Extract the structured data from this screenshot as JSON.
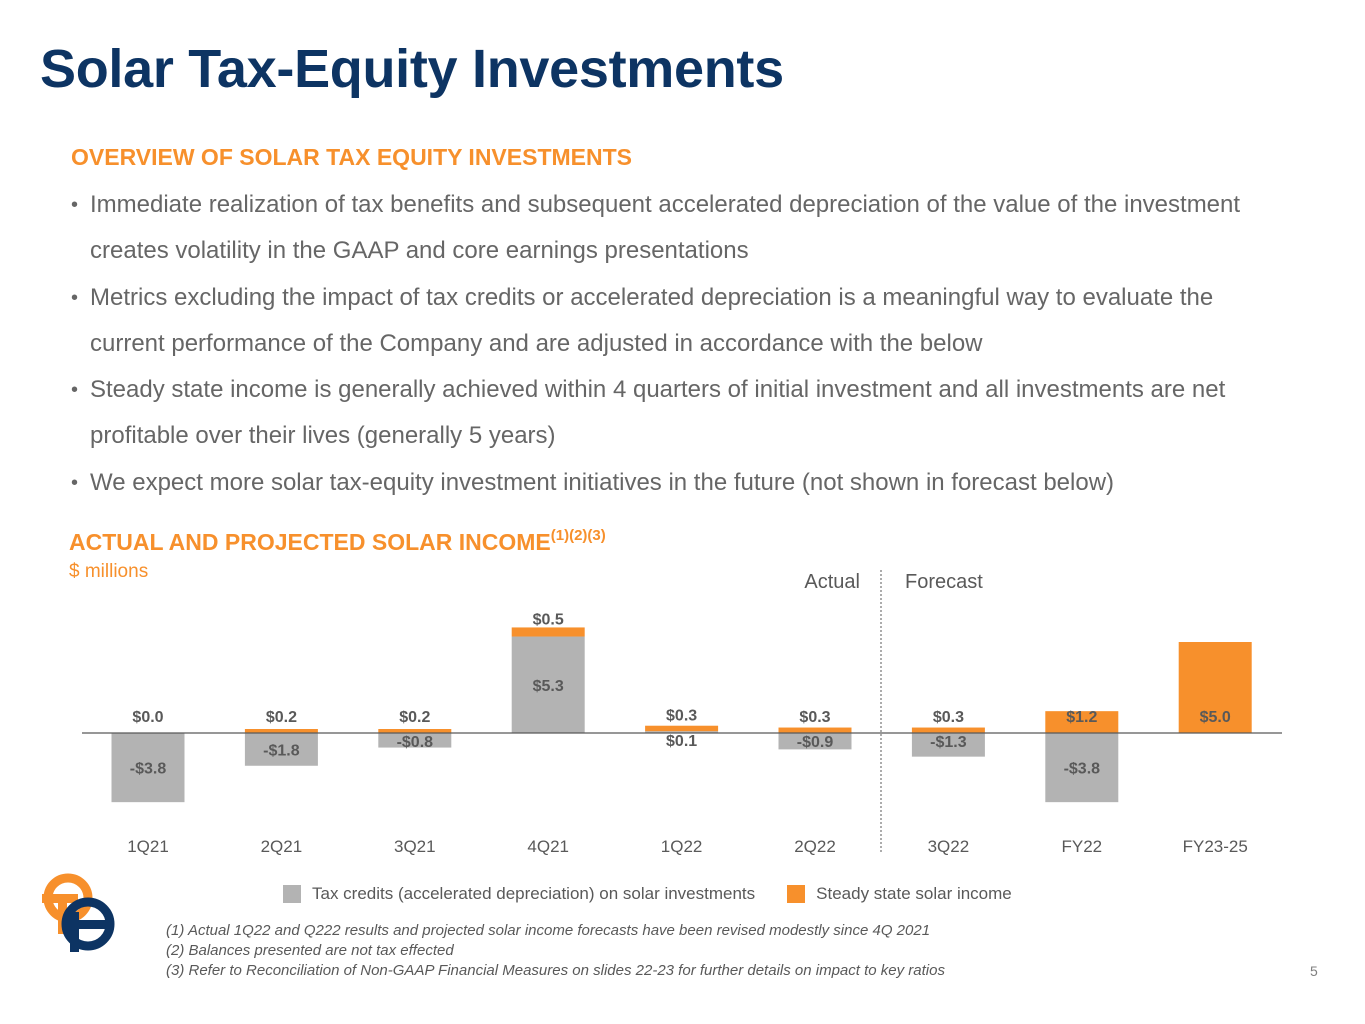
{
  "slide": {
    "title": "Solar Tax-Equity Investments",
    "page_number": "5"
  },
  "overview": {
    "heading": "OVERVIEW OF SOLAR TAX EQUITY INVESTMENTS",
    "bullets": [
      "Immediate realization of tax benefits and subsequent accelerated depreciation of the value of the investment creates volatility in the GAAP and core earnings presentations",
      "Metrics excluding the impact of tax credits or accelerated depreciation is a meaningful way to evaluate the current performance of the Company and are adjusted in accordance with the below",
      "Steady state income is generally achieved within 4 quarters of initial investment and all investments are net profitable over their lives (generally 5 years)",
      "We expect more solar tax-equity investment initiatives in the future (not shown in forecast below)"
    ]
  },
  "chart_heading": {
    "title": "ACTUAL AND PROJECTED SOLAR INCOME",
    "superscript": "(1)(2)(3)",
    "unit": "$ millions"
  },
  "chart_data": {
    "type": "bar",
    "stacked": true,
    "categories": [
      "1Q21",
      "2Q21",
      "3Q21",
      "4Q21",
      "1Q22",
      "2Q22",
      "3Q22",
      "FY22",
      "FY23-25"
    ],
    "series": [
      {
        "name": "Tax credits (accelerated depreciation) on solar investments",
        "color": "#b3b3b3",
        "values": [
          -3.8,
          -1.8,
          -0.8,
          5.3,
          0.1,
          -0.9,
          -1.3,
          -3.8,
          0
        ],
        "labels": [
          "-$3.8",
          "-$1.8",
          "-$0.8",
          "$5.3",
          "$0.1",
          "-$0.9",
          "-$1.3",
          "-$3.8",
          ""
        ]
      },
      {
        "name": "Steady state solar income",
        "color": "#f7902c",
        "values": [
          0.0,
          0.2,
          0.2,
          0.5,
          0.3,
          0.3,
          0.3,
          1.2,
          5.0
        ],
        "labels": [
          "$0.0",
          "$0.2",
          "$0.2",
          "$0.5",
          "$0.3",
          "$0.3",
          "$0.3",
          "$1.2",
          "$5.0"
        ]
      }
    ],
    "divider_labels": {
      "left": "Actual",
      "right": "Forecast"
    },
    "legend_position": "bottom",
    "grid": false
  },
  "footnotes": [
    "(1) Actual 1Q22 and Q222 results and projected solar income forecasts have been revised modestly since 4Q 2021",
    "(2) Balances presented are not tax effected",
    "(3) Refer to Reconciliation of Non-GAAP Financial Measures on slides 22-23 for further details on impact to key ratios"
  ],
  "colors": {
    "title": "#0d3463",
    "accent": "#f7902c",
    "gray_bar": "#b3b3b3",
    "body_text": "#666666"
  },
  "logo": {
    "icon": "company-logo-icon"
  }
}
